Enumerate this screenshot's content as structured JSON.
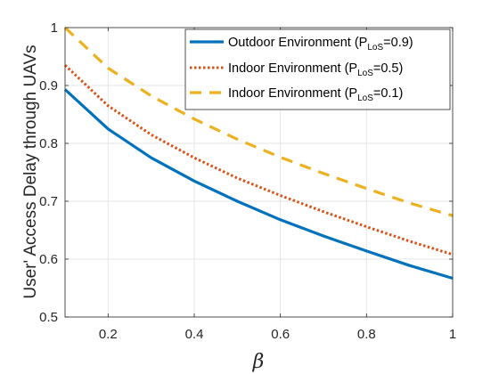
{
  "chart_data": {
    "type": "line",
    "xlabel": "β",
    "ylabel": "User' Access Delay through UAVs",
    "xlim": [
      0.1,
      1
    ],
    "ylim": [
      0.5,
      1
    ],
    "xticks": [
      0.2,
      0.4,
      0.6,
      0.8,
      1
    ],
    "xtick_labels": [
      "0.2",
      "0.4",
      "0.6",
      "0.8",
      "1"
    ],
    "yticks": [
      0.5,
      0.6,
      0.7,
      0.8,
      0.9,
      1
    ],
    "ytick_labels": [
      "0.5",
      "0.6",
      "0.7",
      "0.8",
      "0.9",
      "1"
    ],
    "grid": true,
    "legend_position": "top-right",
    "x": [
      0.1,
      0.2,
      0.3,
      0.4,
      0.5,
      0.6,
      0.7,
      0.8,
      0.9,
      1.0
    ],
    "series": [
      {
        "name_main": "Outdoor Environment (P",
        "name_sub": "LoS",
        "name_tail": "=0.9)",
        "color": "#0072BD",
        "style": "solid",
        "values": [
          0.893,
          0.825,
          0.775,
          0.735,
          0.7,
          0.668,
          0.64,
          0.614,
          0.589,
          0.567
        ]
      },
      {
        "name_main": "Indoor Environment (P",
        "name_sub": "LoS",
        "name_tail": "=0.5)",
        "color": "#D95319",
        "style": "dotted",
        "values": [
          0.935,
          0.865,
          0.815,
          0.775,
          0.74,
          0.71,
          0.682,
          0.656,
          0.631,
          0.608
        ]
      },
      {
        "name_main": "Indoor Environment (P",
        "name_sub": "LoS",
        "name_tail": "=0.1)",
        "color": "#EDB120",
        "style": "dashed",
        "values": [
          1.0,
          0.93,
          0.882,
          0.842,
          0.807,
          0.776,
          0.748,
          0.722,
          0.697,
          0.675
        ]
      }
    ]
  }
}
